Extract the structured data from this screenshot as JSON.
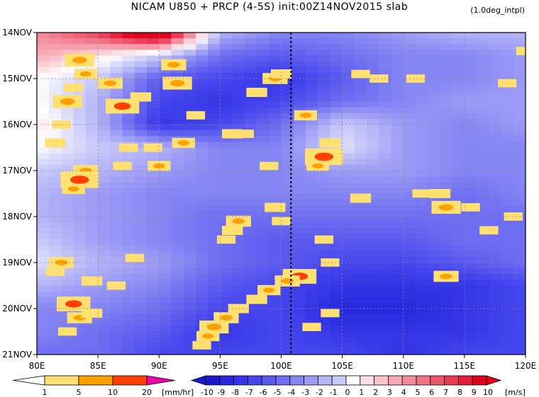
{
  "title": "NICAM   U850 + PRCP (4-5S) init:00Z14NOV2015 slab",
  "note": "(1.0deg_intpl)",
  "chart_data": {
    "type": "heatmap",
    "description": "Hovmoller diagram",
    "x_axis": {
      "range": [
        80,
        120
      ],
      "ticks": [
        "80E",
        "85E",
        "90E",
        "95E",
        "100E",
        "105E",
        "110E",
        "115E",
        "120E"
      ]
    },
    "y_axis": {
      "range_days": [
        0,
        7
      ],
      "ticks": [
        "14NOV",
        "15NOV",
        "16NOV",
        "17NOV",
        "18NOV",
        "19NOV",
        "20NOV",
        "21NOV"
      ],
      "orientation": "time increases downward"
    },
    "grid": true,
    "reference_line_lon": 100.8,
    "u850_colorbar": {
      "labels": [
        "-10",
        "-9",
        "-8",
        "-7",
        "-6",
        "-5",
        "-4",
        "-3",
        "-2",
        "-1",
        "0",
        "1",
        "2",
        "3",
        "4",
        "5",
        "6",
        "7",
        "8",
        "9",
        "10"
      ],
      "unit": "[m/s]",
      "colors": [
        "#1a1acc",
        "#2626dd",
        "#3535e6",
        "#4646ee",
        "#5a5af0",
        "#6e6ef2",
        "#8585f4",
        "#9c9cf6",
        "#b4b4f8",
        "#cacafa",
        "#e2e2fc",
        "#ffffff",
        "#fde0e4",
        "#fbc4cc",
        "#f8a8b4",
        "#f58c9c",
        "#f27084",
        "#ee546c",
        "#ea3854",
        "#e61c3c",
        "#e0001c"
      ]
    },
    "prcp_colorbar": {
      "labels": [
        "1",
        "5",
        "10",
        "20"
      ],
      "unit": "[mm/hr]",
      "colors": [
        "#ffffff",
        "#ffe070",
        "#ffa000",
        "#ff4000",
        "#ee00aa"
      ]
    },
    "u850_field": {
      "comment": "approximate zonal wind, m/s, sampled every 5 deg lon and 0.5 day",
      "lons": [
        80,
        85,
        90,
        95,
        100,
        105,
        110,
        115,
        120
      ],
      "rows": [
        [
          5,
          8,
          14,
          -2,
          -4,
          -4,
          -3,
          -2,
          -2
        ],
        [
          4,
          2,
          -1,
          -5,
          -6,
          -5,
          -4,
          -4,
          -3
        ],
        [
          1,
          -1,
          -6,
          -7,
          -8,
          -6,
          -4,
          -4,
          -3
        ],
        [
          1,
          -2,
          -7,
          -8,
          -7,
          -5,
          -4,
          -3,
          -3
        ],
        [
          2,
          -2,
          -8,
          -7,
          -5,
          -1,
          -3,
          -4,
          -3
        ],
        [
          1,
          -1,
          -2,
          -4,
          -4,
          0,
          -3,
          -4,
          -4
        ],
        [
          -1,
          -2,
          -3,
          -4,
          -4,
          -3,
          -3,
          -4,
          -4
        ],
        [
          -2,
          -3,
          -4,
          -4,
          -4,
          -4,
          -4,
          -5,
          -4
        ],
        [
          -2,
          -3,
          -4,
          -5,
          -5,
          -5,
          -5,
          -5,
          -5
        ],
        [
          -1,
          -3,
          -4,
          -5,
          -6,
          -6,
          -6,
          -5,
          -5
        ],
        [
          0,
          -2,
          -3,
          -5,
          -6,
          -7,
          -7,
          -6,
          -5
        ],
        [
          -2,
          -3,
          -4,
          -6,
          -7,
          -8,
          -8,
          -8,
          -7
        ],
        [
          -4,
          -4,
          -5,
          -7,
          -7,
          -9,
          -9,
          -8,
          -7
        ],
        [
          -4,
          -5,
          -6,
          -8,
          -7,
          -8,
          -8,
          -8,
          -7
        ],
        [
          -5,
          -5,
          -7,
          -7,
          -7,
          -7,
          -8,
          -7,
          -7
        ]
      ]
    },
    "precip_cells": {
      "comment": "precipitation patches [lon, day_offset, intensity_mm_hr]",
      "points": [
        [
          83.5,
          0.6,
          8
        ],
        [
          84.0,
          0.9,
          5
        ],
        [
          83.0,
          1.2,
          3
        ],
        [
          82.5,
          1.5,
          8
        ],
        [
          86.0,
          1.1,
          6
        ],
        [
          87.0,
          1.6,
          10
        ],
        [
          88.5,
          1.4,
          4
        ],
        [
          91.2,
          0.7,
          6
        ],
        [
          91.5,
          1.1,
          8
        ],
        [
          93.0,
          1.8,
          3
        ],
        [
          92.0,
          2.4,
          5
        ],
        [
          87.5,
          2.5,
          3
        ],
        [
          89.5,
          2.5,
          3
        ],
        [
          90.0,
          2.9,
          5
        ],
        [
          84.0,
          3.0,
          6
        ],
        [
          83.5,
          3.2,
          12
        ],
        [
          83.0,
          3.4,
          5
        ],
        [
          96.0,
          2.2,
          4
        ],
        [
          98.0,
          1.3,
          4
        ],
        [
          99.5,
          1.0,
          6
        ],
        [
          100.0,
          0.9,
          4
        ],
        [
          102.0,
          1.8,
          5
        ],
        [
          103.5,
          2.7,
          12
        ],
        [
          103.0,
          2.9,
          5
        ],
        [
          104.0,
          2.4,
          4
        ],
        [
          96.5,
          4.1,
          6
        ],
        [
          96.0,
          4.3,
          4
        ],
        [
          95.5,
          4.5,
          3
        ],
        [
          99.5,
          3.8,
          4
        ],
        [
          100.0,
          4.1,
          3
        ],
        [
          103.5,
          4.5,
          3
        ],
        [
          106.5,
          3.6,
          4
        ],
        [
          111.5,
          3.5,
          3
        ],
        [
          113.0,
          3.5,
          4
        ],
        [
          113.5,
          3.8,
          8
        ],
        [
          115.5,
          3.8,
          3
        ],
        [
          117.0,
          4.3,
          3
        ],
        [
          119.0,
          4.0,
          3
        ],
        [
          104.0,
          5.0,
          3
        ],
        [
          113.5,
          5.3,
          6
        ],
        [
          82.0,
          5.0,
          6
        ],
        [
          81.5,
          5.2,
          3
        ],
        [
          84.5,
          5.4,
          4
        ],
        [
          86.5,
          5.5,
          3
        ],
        [
          88.0,
          4.9,
          3
        ],
        [
          101.5,
          5.3,
          10
        ],
        [
          100.5,
          5.4,
          6
        ],
        [
          99.0,
          5.6,
          5
        ],
        [
          98.0,
          5.8,
          4
        ],
        [
          96.5,
          6.0,
          4
        ],
        [
          95.5,
          6.2,
          6
        ],
        [
          94.5,
          6.4,
          8
        ],
        [
          94.0,
          6.6,
          5
        ],
        [
          93.5,
          6.8,
          3
        ],
        [
          83.0,
          5.9,
          10
        ],
        [
          83.5,
          6.2,
          6
        ],
        [
          84.5,
          6.1,
          4
        ],
        [
          82.5,
          6.5,
          3
        ],
        [
          102.5,
          6.4,
          3
        ],
        [
          104.0,
          6.1,
          3
        ],
        [
          106.5,
          0.9,
          3
        ],
        [
          108.0,
          1.0,
          3
        ],
        [
          111.0,
          1.0,
          3
        ],
        [
          118.5,
          1.1,
          3
        ],
        [
          120.0,
          0.4,
          3
        ],
        [
          82.0,
          2.0,
          3
        ],
        [
          81.5,
          2.4,
          4
        ],
        [
          87.0,
          2.9,
          3
        ],
        [
          97.0,
          2.2,
          3
        ],
        [
          99.0,
          2.9,
          3
        ]
      ]
    }
  }
}
